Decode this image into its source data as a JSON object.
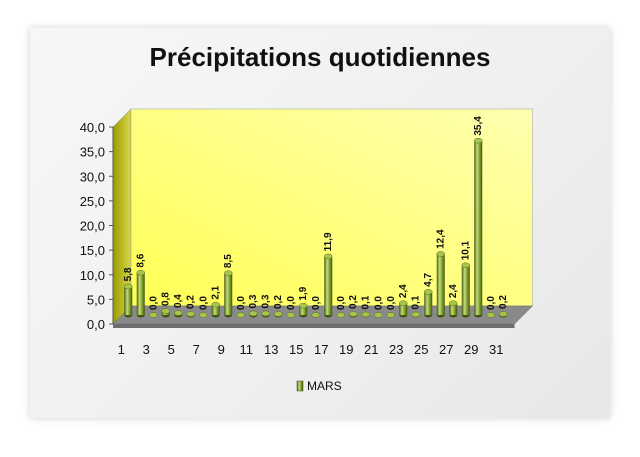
{
  "chart_data": {
    "type": "bar",
    "title": "Précipitations quotidiennes",
    "xlabel": "",
    "ylabel": "",
    "categories": [
      "1",
      "2",
      "3",
      "4",
      "5",
      "6",
      "7",
      "8",
      "9",
      "10",
      "11",
      "12",
      "13",
      "14",
      "15",
      "16",
      "17",
      "18",
      "19",
      "20",
      "21",
      "22",
      "23",
      "24",
      "25",
      "26",
      "27",
      "28",
      "29",
      "30",
      "31"
    ],
    "x_tick_labels": [
      "1",
      "3",
      "5",
      "7",
      "9",
      "11",
      "13",
      "15",
      "17",
      "19",
      "21",
      "23",
      "25",
      "27",
      "29",
      "31"
    ],
    "y_tick_labels": [
      "0,0",
      "5,0",
      "10,0",
      "15,0",
      "20,0",
      "25,0",
      "30,0",
      "35,0",
      "40,0"
    ],
    "ylim": [
      0,
      40
    ],
    "series": [
      {
        "name": "MARS",
        "values": [
          5.8,
          8.6,
          0.0,
          0.8,
          0.4,
          0.2,
          0.0,
          2.1,
          8.5,
          0.0,
          0.3,
          0.3,
          0.2,
          0.0,
          1.9,
          0.0,
          11.9,
          0.0,
          0.2,
          0.1,
          0.0,
          0.0,
          2.4,
          0.1,
          4.7,
          12.4,
          2.4,
          10.1,
          35.4,
          0.0,
          0.2
        ],
        "labels": [
          "5,8",
          "8,6",
          "0,0",
          "0,8",
          "0,4",
          "0,2",
          "0,0",
          "2,1",
          "8,5",
          "0,0",
          "0,3",
          "0,3",
          "0,2",
          "0,0",
          "1,9",
          "0,0",
          "11,9",
          "0,0",
          "0,2",
          "0,1",
          "0,0",
          "0,0",
          "2,4",
          "0,1",
          "4,7",
          "12,4",
          "2,4",
          "10,1",
          "35,4",
          "0,0",
          "0,2"
        ]
      }
    ],
    "grid": false,
    "legend_position": "bottom",
    "colors": {
      "bar": "#7a9a2a",
      "bar_dark": "#3f5612",
      "bar_light": "#c7dc7a",
      "plot_back": "#ffff66",
      "floor": "#8a8a8a",
      "side_wall": "#b8b800"
    }
  }
}
